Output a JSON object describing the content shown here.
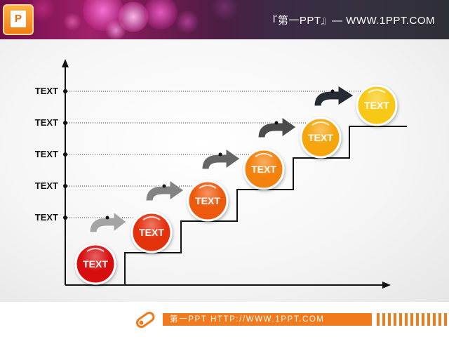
{
  "header": {
    "title": "『第一PPT』— WWW.1PPT.COM",
    "logo_letter": "P"
  },
  "diagram": {
    "axis_labels": [
      "TEXT",
      "TEXT",
      "TEXT",
      "TEXT",
      "TEXT"
    ],
    "steps": [
      {
        "label": "TEXT",
        "color": "#d81010"
      },
      {
        "label": "TEXT",
        "color": "#e4300e"
      },
      {
        "label": "TEXT",
        "color": "#ee5a10"
      },
      {
        "label": "TEXT",
        "color": "#f3820e"
      },
      {
        "label": "TEXT",
        "color": "#f6a50e"
      },
      {
        "label": "TEXT",
        "color": "#f8c812"
      }
    ],
    "arrow_colors": [
      "#dedede",
      "#a4a4a4",
      "#838383",
      "#666666",
      "#4c4c4c",
      "#262b36"
    ]
  },
  "footer": {
    "text": "第一PPT HTTP://WWW.1PPT.COM"
  }
}
